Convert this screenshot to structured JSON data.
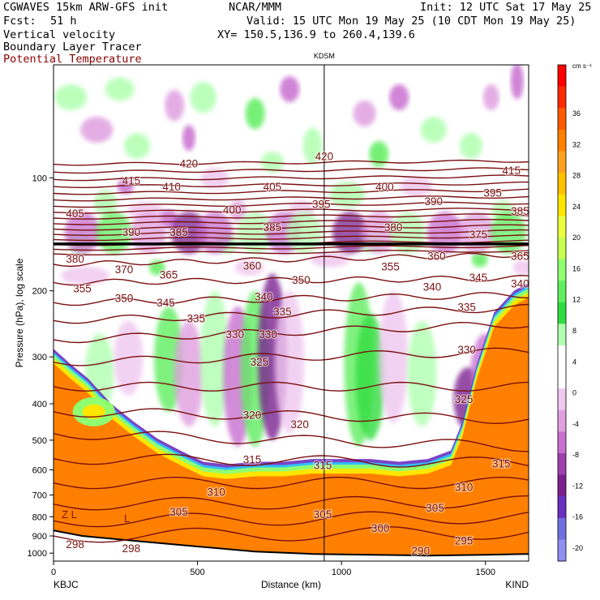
{
  "header": {
    "line1_left": "CGWAVES 15km ARW-GFS init",
    "line1_center": "NCAR/MMM",
    "line1_right": "Init: 12 UTC Sat 17 May 25",
    "fcst_label": "Fcst:",
    "fcst_value": "51 h",
    "valid": "Valid: 15 UTC Mon 19 May 25 (10 CDT Mon 19 May 25)",
    "field1": "Vertical velocity",
    "xy": "XY= 150.5,136.9 to 260.4,139.6",
    "field2": "Boundary Layer Tracer",
    "field3": "Potential Temperature"
  },
  "colors": {
    "theta_contour": "#7a1010",
    "tropopause": "#000000",
    "frame": "#000000"
  },
  "chart_data": {
    "type": "heatmap",
    "title": "",
    "station_marker": "KDSM",
    "station_distance_km": 940,
    "xlabel": "Distance (km)",
    "ylabel": "Pressure (hPa), log scale",
    "xlim": [
      0,
      1650
    ],
    "ylim_hpa": [
      1050,
      50
    ],
    "yscale": "log",
    "x_ticks": [
      0,
      500,
      1000,
      1500
    ],
    "y_ticks": [
      100,
      200,
      300,
      400,
      500,
      600,
      700,
      800,
      900,
      1000
    ],
    "endpoints": {
      "left": "KBJC",
      "right": "KIND"
    },
    "colorbar": {
      "unit": "cm s⁻¹",
      "ticks": [
        36,
        32,
        28,
        24,
        20,
        16,
        12,
        8,
        4,
        0,
        -4,
        -8,
        -12,
        -16,
        -20
      ],
      "colors": [
        "#ff0000",
        "#ff2a00",
        "#ff5a00",
        "#ff8000",
        "#ffa020",
        "#ffc000",
        "#ffe600",
        "#eeff40",
        "#c8ff50",
        "#90ff70",
        "#60ee60",
        "#30dd40",
        "#b0ffb0",
        "#ffffff",
        "#ffffff",
        "#f0c8f0",
        "#e0a0e0",
        "#c870d0",
        "#a040b0",
        "#7a2090",
        "#6a30c0",
        "#7070e0",
        "#9090f0"
      ]
    },
    "theta_labels": [
      {
        "text": "420",
        "x": 470,
        "p": 92
      },
      {
        "text": "420",
        "x": 940,
        "p": 88
      },
      {
        "text": "415",
        "x": 270,
        "p": 102
      },
      {
        "text": "415",
        "x": 1590,
        "p": 96
      },
      {
        "text": "410",
        "x": 410,
        "p": 106
      },
      {
        "text": "405",
        "x": 75,
        "p": 125
      },
      {
        "text": "405",
        "x": 760,
        "p": 106
      },
      {
        "text": "400",
        "x": 620,
        "p": 122
      },
      {
        "text": "400",
        "x": 1150,
        "p": 106
      },
      {
        "text": "395",
        "x": 930,
        "p": 118
      },
      {
        "text": "395",
        "x": 1525,
        "p": 110
      },
      {
        "text": "390",
        "x": 270,
        "p": 140
      },
      {
        "text": "390",
        "x": 1320,
        "p": 116
      },
      {
        "text": "385",
        "x": 435,
        "p": 140
      },
      {
        "text": "385",
        "x": 760,
        "p": 136
      },
      {
        "text": "385",
        "x": 1620,
        "p": 123
      },
      {
        "text": "380",
        "x": 75,
        "p": 165
      },
      {
        "text": "380",
        "x": 1180,
        "p": 136
      },
      {
        "text": "375",
        "x": 1475,
        "p": 142
      },
      {
        "text": "370",
        "x": 245,
        "p": 176
      },
      {
        "text": "365",
        "x": 400,
        "p": 182
      },
      {
        "text": "365",
        "x": 1620,
        "p": 162
      },
      {
        "text": "360",
        "x": 690,
        "p": 172
      },
      {
        "text": "360",
        "x": 1330,
        "p": 162
      },
      {
        "text": "355",
        "x": 100,
        "p": 198
      },
      {
        "text": "355",
        "x": 1170,
        "p": 173
      },
      {
        "text": "350",
        "x": 245,
        "p": 210
      },
      {
        "text": "350",
        "x": 860,
        "p": 188
      },
      {
        "text": "345",
        "x": 390,
        "p": 216
      },
      {
        "text": "345",
        "x": 1475,
        "p": 185
      },
      {
        "text": "340",
        "x": 730,
        "p": 208
      },
      {
        "text": "340",
        "x": 1315,
        "p": 196
      },
      {
        "text": "340",
        "x": 1620,
        "p": 192
      },
      {
        "text": "335",
        "x": 495,
        "p": 238
      },
      {
        "text": "335",
        "x": 795,
        "p": 228
      },
      {
        "text": "335",
        "x": 1435,
        "p": 222
      },
      {
        "text": "330",
        "x": 630,
        "p": 262
      },
      {
        "text": "330",
        "x": 745,
        "p": 262
      },
      {
        "text": "330",
        "x": 1435,
        "p": 288
      },
      {
        "text": "325",
        "x": 715,
        "p": 310
      },
      {
        "text": "325",
        "x": 1425,
        "p": 390
      },
      {
        "text": "320",
        "x": 690,
        "p": 430
      },
      {
        "text": "320",
        "x": 855,
        "p": 455
      },
      {
        "text": "315",
        "x": 690,
        "p": 565
      },
      {
        "text": "315",
        "x": 935,
        "p": 585
      },
      {
        "text": "315",
        "x": 1555,
        "p": 580
      },
      {
        "text": "310",
        "x": 565,
        "p": 690
      },
      {
        "text": "310",
        "x": 1425,
        "p": 670
      },
      {
        "text": "305",
        "x": 435,
        "p": 780
      },
      {
        "text": "305",
        "x": 935,
        "p": 790
      },
      {
        "text": "305",
        "x": 1325,
        "p": 760
      },
      {
        "text": "300",
        "x": 1135,
        "p": 860
      },
      {
        "text": "298",
        "x": 75,
        "p": 950
      },
      {
        "text": "298",
        "x": 270,
        "p": 975
      },
      {
        "text": "295",
        "x": 1425,
        "p": 930
      },
      {
        "text": "290",
        "x": 1275,
        "p": 990
      }
    ],
    "low_markers": [
      {
        "text": "Z L",
        "x": 55,
        "p": 790
      },
      {
        "text": "L",
        "x": 255,
        "p": 810
      }
    ],
    "tropopause_p_hpa": 150
  }
}
